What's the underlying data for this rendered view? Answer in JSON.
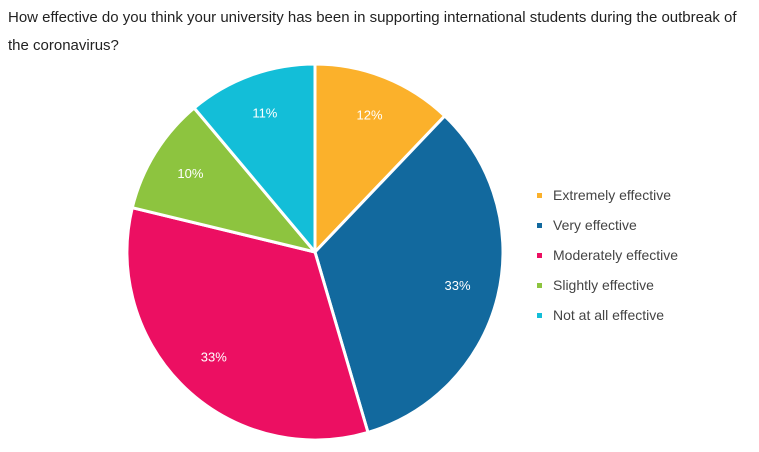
{
  "chart_data": {
    "type": "pie",
    "title": "How effective do you think your university has been in supporting international students during the outbreak of the coronavirus?",
    "slices": [
      {
        "label": "Extremely effective",
        "value": 12,
        "value_label": "12%",
        "color": "#FBB12B"
      },
      {
        "label": "Very effective",
        "value": 33,
        "value_label": "33%",
        "color": "#12699E"
      },
      {
        "label": "Moderately effective",
        "value": 33,
        "value_label": "33%",
        "color": "#EC0F62"
      },
      {
        "label": "Slightly effective",
        "value": 10,
        "value_label": "10%",
        "color": "#8DC43F"
      },
      {
        "label": "Not at all effective",
        "value": 11,
        "value_label": "11%",
        "color": "#13BED8"
      }
    ],
    "legend_position": "right"
  }
}
